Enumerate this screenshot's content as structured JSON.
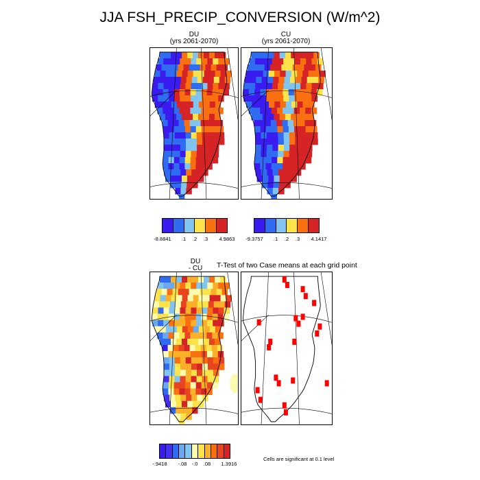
{
  "title": "JJA FSH_PRECIP_CONVERSION (W/m^2)",
  "panels": {
    "du": {
      "name": "DU",
      "years": "(yrs 2061-2070)"
    },
    "cu": {
      "name": "CU",
      "years": "(yrs 2061-2070)"
    },
    "diff": {
      "line1": "DU",
      "line2": "- CU"
    },
    "ttest": {
      "title": "T-Test of two Case means at each grid point",
      "note": "Cells are significant at 0.1 level"
    }
  },
  "colors": {
    "palette6": [
      "#3b1cf0",
      "#2f6cf2",
      "#80c4ef",
      "#fde34a",
      "#f97010",
      "#d62426"
    ],
    "palette11": [
      "#3b1cf0",
      "#4530f2",
      "#2f6cf2",
      "#6aa8f2",
      "#80c4ef",
      "#fdfbb0",
      "#fde34a",
      "#fbb02a",
      "#f97010",
      "#e84420",
      "#d62426"
    ],
    "significance": "#ff0000"
  },
  "legends": {
    "du": [
      "-8.8841",
      ".1",
      ".2",
      ".3",
      "4.9863"
    ],
    "cu": [
      "-9.3757",
      ".1",
      ".2",
      ".3",
      "4.1417"
    ],
    "diff": [
      "-.9418",
      "-.08",
      "-.0",
      ".08",
      "1.3916"
    ]
  }
}
